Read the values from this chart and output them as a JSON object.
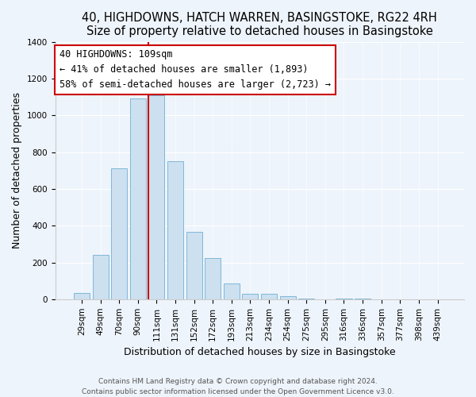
{
  "title": "40, HIGHDOWNS, HATCH WARREN, BASINGSTOKE, RG22 4RH",
  "subtitle": "Size of property relative to detached houses in Basingstoke",
  "xlabel": "Distribution of detached houses by size in Basingstoke",
  "ylabel": "Number of detached properties",
  "bar_labels": [
    "29sqm",
    "49sqm",
    "70sqm",
    "90sqm",
    "111sqm",
    "131sqm",
    "152sqm",
    "172sqm",
    "193sqm",
    "213sqm",
    "234sqm",
    "254sqm",
    "275sqm",
    "295sqm",
    "316sqm",
    "336sqm",
    "357sqm",
    "377sqm",
    "398sqm",
    "439sqm"
  ],
  "bar_values": [
    35,
    240,
    710,
    1090,
    1110,
    750,
    365,
    225,
    85,
    30,
    28,
    15,
    5,
    0,
    5,
    2,
    0,
    0,
    0,
    0
  ],
  "bar_color": "#cce0f0",
  "bar_edge_color": "#7fb8d8",
  "vline_color": "#cc0000",
  "annotation_title": "40 HIGHDOWNS: 109sqm",
  "annotation_line1": "← 41% of detached houses are smaller (1,893)",
  "annotation_line2": "58% of semi-detached houses are larger (2,723) →",
  "annotation_box_color": "#ffffff",
  "annotation_box_edge": "#cc0000",
  "ylim": [
    0,
    1400
  ],
  "yticks": [
    0,
    200,
    400,
    600,
    800,
    1000,
    1200,
    1400
  ],
  "footer_line1": "Contains HM Land Registry data © Crown copyright and database right 2024.",
  "footer_line2": "Contains public sector information licensed under the Open Government Licence v3.0.",
  "bg_color": "#eef4fb",
  "plot_bg_color": "#eef4fb",
  "title_fontsize": 10.5,
  "axis_label_fontsize": 9,
  "tick_fontsize": 7.5
}
